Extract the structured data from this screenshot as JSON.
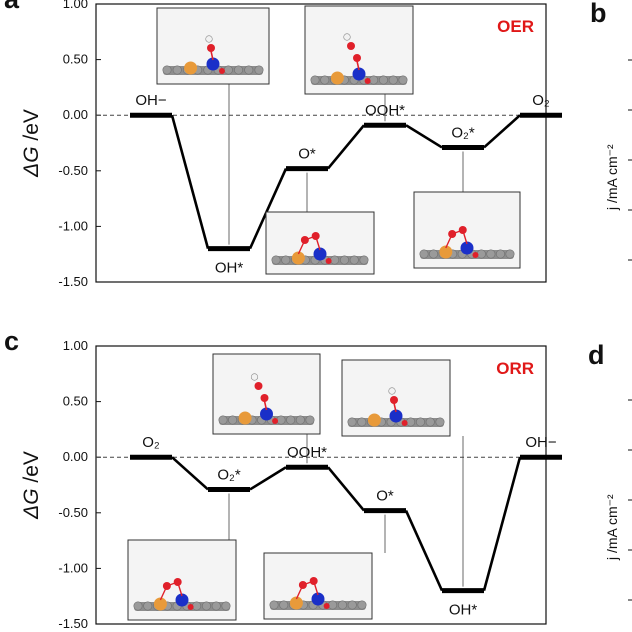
{
  "chart_data": [
    {
      "type": "line",
      "panel": "a",
      "tag": "OER",
      "ylabel_symbol": "ΔG",
      "ylabel_unit": " /eV",
      "ylim": [
        -1.5,
        1.0
      ],
      "yticks": [
        "1.00",
        "0.50",
        "0.00",
        "-0.50",
        "-1.00",
        "-1.50"
      ],
      "states": [
        {
          "label": "OH−",
          "value": 0.0
        },
        {
          "label": "OH*",
          "value": -1.2
        },
        {
          "label": "O*",
          "value": -0.48
        },
        {
          "label": "OOH*",
          "value": -0.09
        },
        {
          "label": "O₂*",
          "value": -0.29
        },
        {
          "label": "O₂",
          "value": 0.0
        }
      ],
      "baseline": 0.0,
      "line_color": "#000000",
      "tag_color": "#e01818"
    },
    {
      "type": "line",
      "panel": "c",
      "tag": "ORR",
      "ylabel_symbol": "ΔG",
      "ylabel_unit": " /eV",
      "ylim": [
        -1.5,
        1.0
      ],
      "yticks": [
        "1.00",
        "0.50",
        "0.00",
        "-0.50",
        "-1.00",
        "-1.50"
      ],
      "states": [
        {
          "label": "O₂",
          "value": 0.0
        },
        {
          "label": "O₂*",
          "value": -0.29
        },
        {
          "label": "OOH*",
          "value": -0.09
        },
        {
          "label": "O*",
          "value": -0.48
        },
        {
          "label": "OH*",
          "value": -1.2
        },
        {
          "label": "OH−",
          "value": 0.0
        }
      ],
      "baseline": 0.0,
      "line_color": "#000000",
      "tag_color": "#e01818"
    }
  ],
  "side_panels": {
    "b": {
      "letter": "b",
      "ylabel": "j /mA cm⁻²"
    },
    "d": {
      "letter": "d",
      "ylabel": "j /mA cm⁻²"
    }
  },
  "colors": {
    "atom_carbon": "#8d8d8d",
    "atom_fe": "#e89a3a",
    "atom_n": "#1a2fc8",
    "atom_o": "#e0202a",
    "atom_h": "#f2f2f2"
  }
}
